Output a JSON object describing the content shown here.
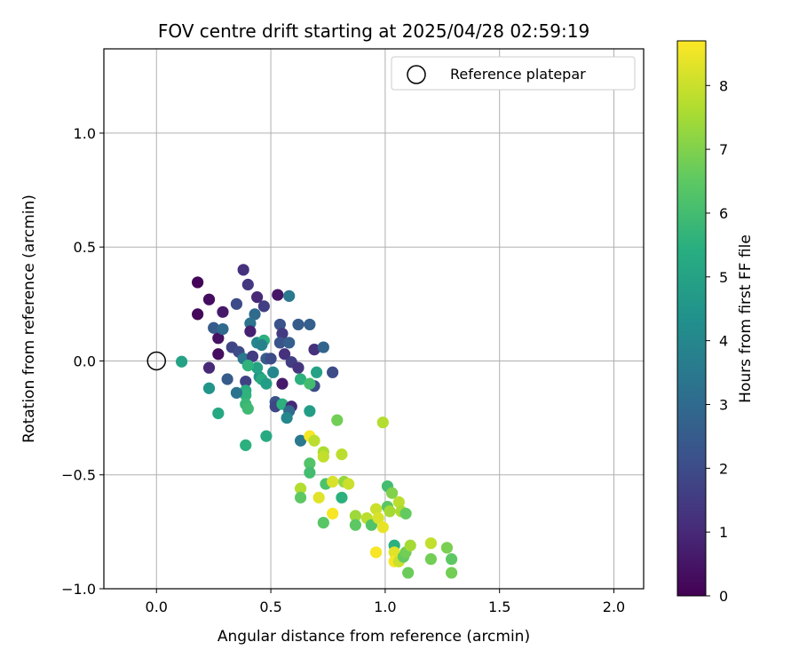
{
  "chart_data": {
    "type": "scatter",
    "title": "FOV centre drift starting at 2025/04/28 02:59:19",
    "xlabel": "Angular distance from reference (arcmin)",
    "ylabel": "Rotation from reference (arcmin)",
    "xlim": [
      -0.23,
      2.13
    ],
    "ylim": [
      -1.0,
      1.37
    ],
    "xticks": [
      0.0,
      0.5,
      1.0,
      1.5,
      2.0
    ],
    "xtick_labels": [
      "0.0",
      "0.5",
      "1.0",
      "1.5",
      "2.0"
    ],
    "yticks": [
      -1.0,
      -0.5,
      0.0,
      0.5,
      1.0
    ],
    "ytick_labels": [
      "−1.0",
      "−0.5",
      "0.0",
      "0.5",
      "1.0"
    ],
    "grid": true,
    "legend": {
      "placement": "top-right",
      "entries": [
        "Reference platepar"
      ]
    },
    "reference": {
      "x": 0.0,
      "y": 0.0,
      "label": "Reference platepar"
    },
    "colorbar": {
      "label": "Hours from first FF file",
      "colormap": "viridis",
      "range": [
        0,
        8.7
      ],
      "ticks": [
        0,
        1,
        2,
        3,
        4,
        5,
        6,
        7,
        8
      ],
      "tick_labels": [
        "0",
        "1",
        "2",
        "3",
        "4",
        "5",
        "6",
        "7",
        "8"
      ]
    },
    "points": [
      {
        "x": 0.18,
        "y": 0.345,
        "c": 0.1
      },
      {
        "x": 0.18,
        "y": 0.205,
        "c": 0.15
      },
      {
        "x": 0.23,
        "y": 0.27,
        "c": 0.3
      },
      {
        "x": 0.29,
        "y": 0.215,
        "c": 0.6
      },
      {
        "x": 0.27,
        "y": 0.1,
        "c": 0.4
      },
      {
        "x": 0.27,
        "y": 0.03,
        "c": 0.3
      },
      {
        "x": 0.23,
        "y": -0.03,
        "c": 1.0
      },
      {
        "x": 0.25,
        "y": 0.145,
        "c": 2.5
      },
      {
        "x": 0.29,
        "y": 0.14,
        "c": 3.0
      },
      {
        "x": 0.38,
        "y": 0.4,
        "c": 1.2
      },
      {
        "x": 0.4,
        "y": 0.335,
        "c": 1.4
      },
      {
        "x": 0.35,
        "y": 0.25,
        "c": 2.0
      },
      {
        "x": 0.44,
        "y": 0.28,
        "c": 1.0
      },
      {
        "x": 0.47,
        "y": 0.24,
        "c": 1.6
      },
      {
        "x": 0.53,
        "y": 0.29,
        "c": 0.5
      },
      {
        "x": 0.58,
        "y": 0.285,
        "c": 3.5
      },
      {
        "x": 0.43,
        "y": 0.205,
        "c": 3.0
      },
      {
        "x": 0.41,
        "y": 0.165,
        "c": 3.3
      },
      {
        "x": 0.41,
        "y": 0.13,
        "c": 0.8
      },
      {
        "x": 0.33,
        "y": 0.06,
        "c": 1.8
      },
      {
        "x": 0.36,
        "y": 0.04,
        "c": 2.0
      },
      {
        "x": 0.38,
        "y": 0.01,
        "c": 3.5
      },
      {
        "x": 0.42,
        "y": 0.02,
        "c": 1.5
      },
      {
        "x": 0.44,
        "y": 0.08,
        "c": 4.0
      },
      {
        "x": 0.47,
        "y": 0.09,
        "c": 5.5
      },
      {
        "x": 0.46,
        "y": 0.07,
        "c": 3.8
      },
      {
        "x": 0.48,
        "y": 0.01,
        "c": 2.5
      },
      {
        "x": 0.5,
        "y": 0.01,
        "c": 2.0
      },
      {
        "x": 0.54,
        "y": 0.16,
        "c": 2.2
      },
      {
        "x": 0.55,
        "y": 0.12,
        "c": 1.5
      },
      {
        "x": 0.54,
        "y": 0.08,
        "c": 2.2
      },
      {
        "x": 0.56,
        "y": 0.03,
        "c": 1.2
      },
      {
        "x": 0.58,
        "y": 0.08,
        "c": 2.6
      },
      {
        "x": 0.62,
        "y": 0.16,
        "c": 2.5
      },
      {
        "x": 0.67,
        "y": 0.16,
        "c": 2.6
      },
      {
        "x": 0.69,
        "y": 0.05,
        "c": 1.2
      },
      {
        "x": 0.73,
        "y": 0.06,
        "c": 2.8
      },
      {
        "x": 0.77,
        "y": -0.05,
        "c": 2.0
      },
      {
        "x": 0.59,
        "y": -0.005,
        "c": 1.6
      },
      {
        "x": 0.62,
        "y": -0.03,
        "c": 1.3
      },
      {
        "x": 0.7,
        "y": -0.05,
        "c": 5.0
      },
      {
        "x": 0.69,
        "y": -0.11,
        "c": 2.0
      },
      {
        "x": 0.63,
        "y": -0.08,
        "c": 5.5
      },
      {
        "x": 0.67,
        "y": -0.1,
        "c": 6.0
      },
      {
        "x": 0.55,
        "y": -0.1,
        "c": 0.6
      },
      {
        "x": 0.51,
        "y": -0.05,
        "c": 4.0
      },
      {
        "x": 0.52,
        "y": -0.18,
        "c": 2.2
      },
      {
        "x": 0.52,
        "y": -0.2,
        "c": 1.8
      },
      {
        "x": 0.55,
        "y": -0.19,
        "c": 5.5
      },
      {
        "x": 0.59,
        "y": -0.2,
        "c": 1.0
      },
      {
        "x": 0.58,
        "y": -0.22,
        "c": 3.0
      },
      {
        "x": 0.57,
        "y": -0.25,
        "c": 4.0
      },
      {
        "x": 0.45,
        "y": -0.07,
        "c": 4.5
      },
      {
        "x": 0.46,
        "y": -0.08,
        "c": 5.3
      },
      {
        "x": 0.48,
        "y": -0.1,
        "c": 4.8
      },
      {
        "x": 0.44,
        "y": -0.03,
        "c": 5.0
      },
      {
        "x": 0.4,
        "y": -0.02,
        "c": 5.6
      },
      {
        "x": 0.39,
        "y": -0.09,
        "c": 1.7
      },
      {
        "x": 0.39,
        "y": -0.13,
        "c": 5.4
      },
      {
        "x": 0.39,
        "y": -0.15,
        "c": 5.6
      },
      {
        "x": 0.39,
        "y": -0.19,
        "c": 5.8
      },
      {
        "x": 0.4,
        "y": -0.21,
        "c": 5.9
      },
      {
        "x": 0.35,
        "y": -0.14,
        "c": 3.3
      },
      {
        "x": 0.31,
        "y": -0.08,
        "c": 2.5
      },
      {
        "x": 0.23,
        "y": -0.12,
        "c": 4.5
      },
      {
        "x": 0.27,
        "y": -0.23,
        "c": 5.2
      },
      {
        "x": 0.39,
        "y": -0.37,
        "c": 5.5
      },
      {
        "x": 0.48,
        "y": -0.33,
        "c": 5.3
      },
      {
        "x": 0.11,
        "y": -0.003,
        "c": 5.0
      },
      {
        "x": 0.63,
        "y": -0.35,
        "c": 3.5
      },
      {
        "x": 0.67,
        "y": -0.22,
        "c": 4.8
      },
      {
        "x": 0.67,
        "y": -0.33,
        "c": 8.6
      },
      {
        "x": 0.69,
        "y": -0.35,
        "c": 7.8
      },
      {
        "x": 0.79,
        "y": -0.26,
        "c": 6.8
      },
      {
        "x": 0.99,
        "y": -0.27,
        "c": 7.7
      },
      {
        "x": 0.73,
        "y": -0.4,
        "c": 7.6
      },
      {
        "x": 0.73,
        "y": -0.42,
        "c": 7.9
      },
      {
        "x": 0.81,
        "y": -0.41,
        "c": 7.8
      },
      {
        "x": 0.67,
        "y": -0.45,
        "c": 6.3
      },
      {
        "x": 0.67,
        "y": -0.49,
        "c": 6.0
      },
      {
        "x": 0.74,
        "y": -0.54,
        "c": 6.2
      },
      {
        "x": 0.77,
        "y": -0.53,
        "c": 8.2
      },
      {
        "x": 0.82,
        "y": -0.53,
        "c": 7.3
      },
      {
        "x": 0.84,
        "y": -0.54,
        "c": 8.0
      },
      {
        "x": 0.63,
        "y": -0.56,
        "c": 7.7
      },
      {
        "x": 0.63,
        "y": -0.6,
        "c": 6.5
      },
      {
        "x": 0.71,
        "y": -0.6,
        "c": 8.3
      },
      {
        "x": 0.81,
        "y": -0.6,
        "c": 5.5
      },
      {
        "x": 0.77,
        "y": -0.67,
        "c": 8.6
      },
      {
        "x": 0.73,
        "y": -0.71,
        "c": 6.4
      },
      {
        "x": 0.87,
        "y": -0.68,
        "c": 7.4
      },
      {
        "x": 0.87,
        "y": -0.72,
        "c": 6.5
      },
      {
        "x": 0.92,
        "y": -0.69,
        "c": 7.8
      },
      {
        "x": 0.94,
        "y": -0.72,
        "c": 6.3
      },
      {
        "x": 0.96,
        "y": -0.65,
        "c": 8.0
      },
      {
        "x": 0.97,
        "y": -0.69,
        "c": 8.2
      },
      {
        "x": 0.99,
        "y": -0.73,
        "c": 8.4
      },
      {
        "x": 1.01,
        "y": -0.55,
        "c": 6.0
      },
      {
        "x": 1.03,
        "y": -0.58,
        "c": 7.0
      },
      {
        "x": 1.01,
        "y": -0.64,
        "c": 6.4
      },
      {
        "x": 1.02,
        "y": -0.66,
        "c": 7.5
      },
      {
        "x": 1.06,
        "y": -0.62,
        "c": 7.8
      },
      {
        "x": 1.07,
        "y": -0.66,
        "c": 7.6
      },
      {
        "x": 1.09,
        "y": -0.67,
        "c": 6.6
      },
      {
        "x": 0.96,
        "y": -0.84,
        "c": 8.6
      },
      {
        "x": 1.04,
        "y": -0.81,
        "c": 5.5
      },
      {
        "x": 1.04,
        "y": -0.84,
        "c": 8.3
      },
      {
        "x": 1.04,
        "y": -0.88,
        "c": 8.6
      },
      {
        "x": 1.06,
        "y": -0.88,
        "c": 8.0
      },
      {
        "x": 1.08,
        "y": -0.86,
        "c": 6.6
      },
      {
        "x": 1.09,
        "y": -0.84,
        "c": 6.8
      },
      {
        "x": 1.11,
        "y": -0.81,
        "c": 7.5
      },
      {
        "x": 1.1,
        "y": -0.93,
        "c": 6.7
      },
      {
        "x": 1.2,
        "y": -0.8,
        "c": 7.9
      },
      {
        "x": 1.2,
        "y": -0.87,
        "c": 6.8
      },
      {
        "x": 1.27,
        "y": -0.82,
        "c": 6.9
      },
      {
        "x": 1.29,
        "y": -0.87,
        "c": 6.5
      },
      {
        "x": 1.29,
        "y": -0.93,
        "c": 6.8
      }
    ]
  }
}
